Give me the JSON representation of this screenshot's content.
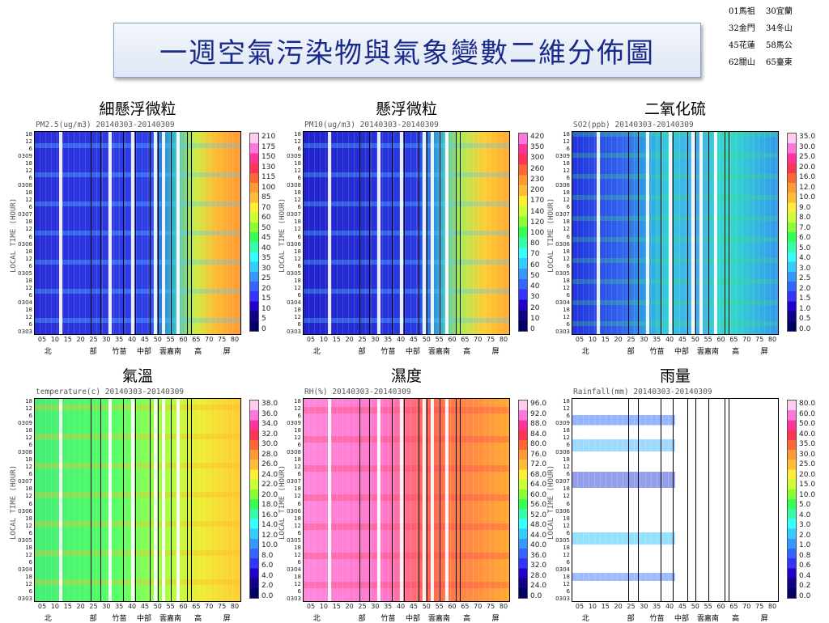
{
  "header": {
    "title": "一週空氣污染物與氣象變數二維分佈圖"
  },
  "stations": [
    "01馬祖",
    "30宜蘭",
    "32金門",
    "34冬山",
    "45花蓮",
    "58馬公",
    "62關山",
    "65臺東"
  ],
  "y_labels": [
    "18",
    "12",
    "6",
    "0309",
    "18",
    "12",
    "6",
    "0308",
    "18",
    "12",
    "6",
    "0307",
    "18",
    "12",
    "6",
    "0306",
    "18",
    "12",
    "6",
    "0305",
    "18",
    "12",
    "6",
    "0304",
    "18",
    "12",
    "6",
    "0303"
  ],
  "y_axis_title": "LOCAL TIME (HOUR)",
  "x_labels": [
    "05",
    "10",
    "15",
    "20",
    "25",
    "30",
    "35",
    "40",
    "45",
    "50",
    "55",
    "60",
    "65",
    "70",
    "75",
    "80"
  ],
  "regions": [
    "北",
    "部",
    "竹苗",
    "中部",
    "雲嘉南",
    "高",
    "屏"
  ],
  "panels": [
    {
      "title": "細懸浮微粒",
      "subtitle": "PM2.5(ug/m3) 20140303-20140309",
      "colorbar": [
        "210",
        "175",
        "150",
        "130",
        "115",
        "100",
        "85",
        "70",
        "60",
        "50",
        "45",
        "40",
        "35",
        "30",
        "25",
        "20",
        "15",
        "10",
        "5",
        "0"
      ]
    },
    {
      "title": "懸浮微粒",
      "subtitle": "PM10(ug/m3) 20140303-20140309",
      "colorbar": [
        "420",
        "350",
        "300",
        "260",
        "230",
        "200",
        "170",
        "140",
        "120",
        "100",
        "80",
        "70",
        "60",
        "50",
        "40",
        "30",
        "20",
        "10",
        "0"
      ]
    },
    {
      "title": "二氧化硫",
      "subtitle": "SO2(ppb) 20140303-20140309",
      "colorbar": [
        "35.0",
        "30.0",
        "25.0",
        "20.0",
        "16.0",
        "12.0",
        "10.0",
        "9.0",
        "8.0",
        "7.0",
        "6.0",
        "5.0",
        "4.0",
        "3.0",
        "2.5",
        "2.0",
        "1.5",
        "1.0",
        "0.5",
        "0.0"
      ]
    },
    {
      "title": "氣溫",
      "subtitle": "temperature(c) 20140303-20140309",
      "colorbar": [
        "38.0",
        "36.0",
        "34.0",
        "32.0",
        "30.0",
        "28.0",
        "26.0",
        "24.0",
        "22.0",
        "20.0",
        "18.0",
        "16.0",
        "14.0",
        "12.0",
        "10.0",
        "8.0",
        "6.0",
        "4.0",
        "2.0",
        "0.0"
      ]
    },
    {
      "title": "濕度",
      "subtitle": "RH(%) 20140303-20140309",
      "colorbar": [
        "96.0",
        "92.0",
        "88.0",
        "84.0",
        "80.0",
        "76.0",
        "72.0",
        "68.0",
        "64.0",
        "60.0",
        "56.0",
        "52.0",
        "48.0",
        "44.0",
        "40.0",
        "36.0",
        "32.0",
        "28.0",
        "24.0",
        "0.0"
      ]
    },
    {
      "title": "雨量",
      "subtitle": "Rainfall(mm) 20140303-20140309",
      "colorbar": [
        "80.0",
        "60.0",
        "50.0",
        "40.0",
        "35.0",
        "30.0",
        "25.0",
        "20.0",
        "15.0",
        "10.0",
        "5.0",
        "4.0",
        "3.0",
        "2.0",
        "1.0",
        "0.8",
        "0.6",
        "0.4",
        "0.2",
        "0.0"
      ]
    }
  ]
}
